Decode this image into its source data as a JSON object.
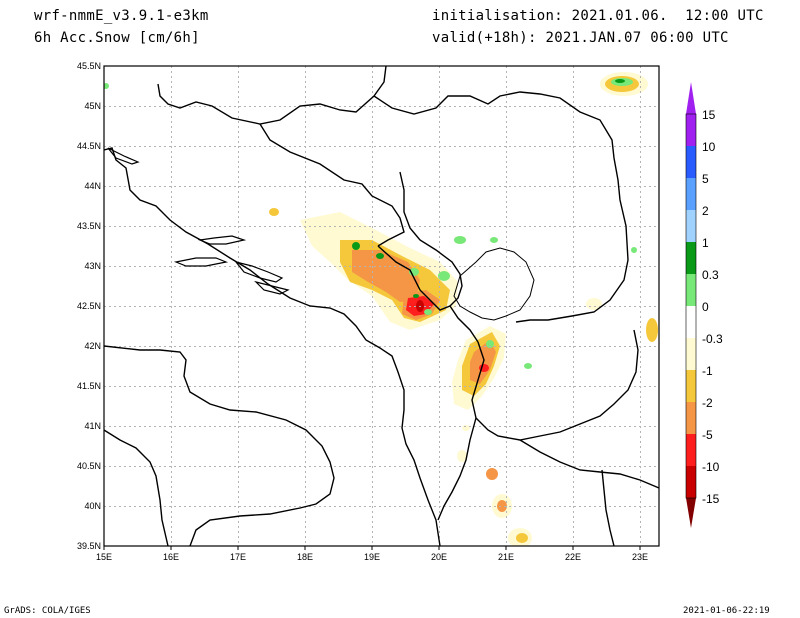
{
  "header": {
    "model": "wrf-nmmE_v3.9.1-e3km",
    "variable": "6h Acc.Snow [cm/6h]",
    "init": "initialisation: 2021.01.06.  12:00 UTC",
    "valid": "valid(+18h): 2021.JAN.07 06:00 UTC"
  },
  "footer": {
    "left": "GrADS: COLA/IGES",
    "right": "2021-01-06-22:19"
  },
  "map": {
    "lon_labels": [
      "15E",
      "16E",
      "17E",
      "18E",
      "19E",
      "20E",
      "21E",
      "22E",
      "23E"
    ],
    "lat_labels": [
      "45.5N",
      "45N",
      "44.5N",
      "44N",
      "43.5N",
      "43N",
      "42.5N",
      "42N",
      "41.5N",
      "41N",
      "40.5N",
      "40N",
      "39.5N"
    ]
  },
  "colorbar": {
    "labels": [
      "15",
      "10",
      "5",
      "2",
      "1",
      "0.3",
      "0",
      "-0.3",
      "-1",
      "-2",
      "-5",
      "-10",
      "-15"
    ],
    "colors": [
      "#a020f0",
      "#2a5bff",
      "#5aa0ff",
      "#a0d2ff",
      "#0a9a18",
      "#78e878",
      "#ffffff",
      "#fffad2",
      "#f5c83c",
      "#f59646",
      "#ff1e1e",
      "#c80000",
      "#820000"
    ]
  }
}
